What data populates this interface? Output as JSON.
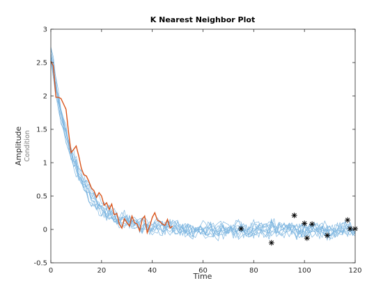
{
  "chart_data": {
    "type": "line",
    "title": "K Nearest Neighbor Plot",
    "xlabel": "Time",
    "ylabel": "Amplitude",
    "ylabel_secondary": "Condition",
    "xlim": [
      0,
      120
    ],
    "ylim": [
      -0.5,
      3
    ],
    "xticks": [
      0,
      20,
      40,
      60,
      80,
      100,
      120
    ],
    "yticks": [
      -0.5,
      0,
      0.5,
      1,
      1.5,
      2,
      2.5,
      3
    ],
    "grid": false,
    "colors": {
      "neighbors": "#7EB6E0",
      "query": "#D95319",
      "markers": "#000000"
    },
    "neighbors": {
      "count": 10,
      "x_range": [
        0,
        120
      ],
      "points_per_series": 121,
      "shape": "exponential decay from about 2.7 to a noisy baseline near 0"
    },
    "query_series": {
      "x": [
        0,
        1,
        2,
        3,
        4,
        5,
        6,
        7,
        8,
        9,
        10,
        11,
        12,
        13,
        14,
        15,
        16,
        17,
        18,
        19,
        20,
        21,
        22,
        23,
        24,
        25,
        26,
        27,
        28,
        29,
        30,
        31,
        32,
        33,
        34,
        35,
        36,
        37,
        38,
        39,
        40,
        41,
        42,
        43,
        44,
        45,
        46,
        47,
        48
      ],
      "y": [
        2.52,
        2.45,
        1.98,
        1.98,
        1.96,
        1.88,
        1.8,
        1.45,
        1.15,
        1.2,
        1.25,
        1.1,
        0.92,
        0.82,
        0.8,
        0.72,
        0.62,
        0.58,
        0.48,
        0.55,
        0.5,
        0.36,
        0.4,
        0.3,
        0.38,
        0.22,
        0.24,
        0.08,
        0.02,
        0.16,
        0.1,
        0.05,
        0.2,
        0.1,
        0.08,
        -0.02,
        0.15,
        0.2,
        -0.05,
        0.05,
        0.18,
        0.25,
        0.14,
        0.12,
        0.08,
        0.06,
        0.15,
        0.02,
        0.05
      ]
    },
    "end_markers": {
      "x": [
        75,
        87,
        96,
        100,
        101,
        103,
        109,
        117,
        118,
        120
      ],
      "y": [
        0.01,
        -0.2,
        0.21,
        0.09,
        -0.13,
        0.08,
        -0.09,
        0.14,
        0.01,
        0.01
      ]
    }
  }
}
